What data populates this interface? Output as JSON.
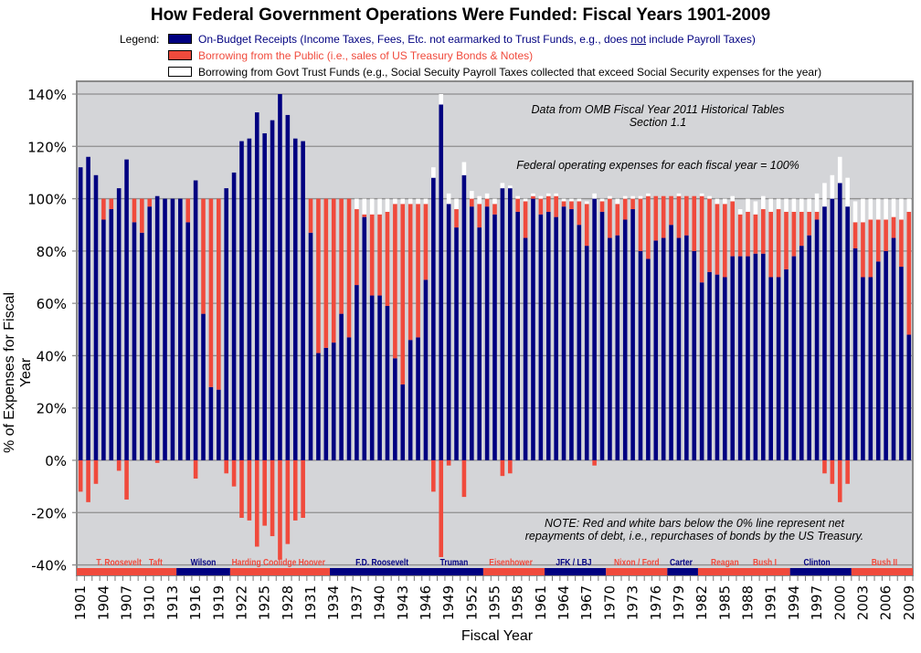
{
  "chart_data": {
    "type": "bar",
    "stacked": true,
    "title": "How Federal Government Operations Were Funded: Fiscal Years 1901-2009",
    "xlabel": "Fiscal Year",
    "ylabel": "% of Expenses for Fiscal Year",
    "ylim": [
      -40,
      140
    ],
    "yticks": [
      "140%",
      "120%",
      "100%",
      "80%",
      "60%",
      "40%",
      "20%",
      "0%",
      "-20%",
      "-40%"
    ],
    "ytick_values": [
      140,
      120,
      100,
      80,
      60,
      40,
      20,
      0,
      -20,
      -40
    ],
    "xtick_labels": [
      "1901",
      "1904",
      "1907",
      "1910",
      "1913",
      "1916",
      "1919",
      "1922",
      "1925",
      "1928",
      "1931",
      "1934",
      "1937",
      "1940",
      "1943",
      "1946",
      "1949",
      "1952",
      "1955",
      "1958",
      "1961",
      "1964",
      "1967",
      "1970",
      "1973",
      "1976",
      "1979",
      "1982",
      "1985",
      "1988",
      "1991",
      "1994",
      "1997",
      "2000",
      "2003",
      "2006",
      "2009"
    ],
    "grid": true,
    "legend": {
      "label": "Legend:",
      "placement": "top",
      "entries": [
        {
          "name": "On-Budget Receipts",
          "text_before": "On-Budget Receipts (Income Taxes, Fees, Etc. not earmarked to Trust Funds, e.g., does ",
          "underlined": "not",
          "text_after": " include Payroll Taxes)",
          "color": "#000080"
        },
        {
          "name": "Borrowing from the Public",
          "text": "Borrowing from the Public (i.e., sales of US Treasury Bonds & Notes)",
          "color": "#F04A3C"
        },
        {
          "name": "Borrowing from Govt Trust Funds",
          "text": "Borrowing from Govt Trust Funds (e.g., Social Secuity Payroll Taxes collected that exceed Social Security expenses for the year)",
          "color": "#FFFFFF"
        }
      ]
    },
    "annotations": {
      "source_line1": "Data from OMB Fiscal Year 2011 Historical Tables",
      "source_line2": "Section 1.1",
      "basis": "Federal operating expenses for each fiscal year = 100%",
      "note_line1": "NOTE: Red and white bars below the 0% line represent net",
      "note_line2": "repayments of debt, i.e., repurchases of bonds by the US Treasury."
    },
    "presidents": [
      {
        "name": "T. Roosevelt",
        "start": 1901,
        "end": 1913,
        "party_color": "#F04A3C"
      },
      {
        "name": "Taft",
        "start": 1901,
        "end": 1913,
        "party_color": "#F04A3C"
      },
      {
        "name": "Wilson",
        "start": 1914,
        "end": 1920,
        "party_color": "#000080"
      },
      {
        "name": "Harding Coolidge Hoover",
        "start": 1921,
        "end": 1933,
        "party_color": "#F04A3C"
      },
      {
        "name": "F.D. Roosevelt",
        "start": 1934,
        "end": 1953,
        "party_color": "#000080"
      },
      {
        "name": "Truman",
        "start": 1934,
        "end": 1953,
        "party_color": "#000080"
      },
      {
        "name": "Eisenhower",
        "start": 1954,
        "end": 1961,
        "party_color": "#F04A3C"
      },
      {
        "name": "JFK / LBJ",
        "start": 1962,
        "end": 1969,
        "party_color": "#000080"
      },
      {
        "name": "Nixon / Ford",
        "start": 1970,
        "end": 1977,
        "party_color": "#F04A3C"
      },
      {
        "name": "Carter",
        "start": 1978,
        "end": 1981,
        "party_color": "#000080"
      },
      {
        "name": "Reagan",
        "start": 1982,
        "end": 1993,
        "party_color": "#F04A3C"
      },
      {
        "name": "Bush I",
        "start": 1982,
        "end": 1993,
        "party_color": "#F04A3C"
      },
      {
        "name": "Clinton",
        "start": 1994,
        "end": 2001,
        "party_color": "#000080"
      },
      {
        "name": "Bush II",
        "start": 2002,
        "end": 2009,
        "party_color": "#F04A3C"
      }
    ],
    "x": [
      1901,
      1902,
      1903,
      1904,
      1905,
      1906,
      1907,
      1908,
      1909,
      1910,
      1911,
      1912,
      1913,
      1914,
      1915,
      1916,
      1917,
      1918,
      1919,
      1920,
      1921,
      1922,
      1923,
      1924,
      1925,
      1926,
      1927,
      1928,
      1929,
      1930,
      1931,
      1932,
      1933,
      1934,
      1935,
      1936,
      1937,
      1938,
      1939,
      1940,
      1941,
      1942,
      1943,
      1944,
      1945,
      1946,
      1947,
      1948,
      1949,
      1950,
      1951,
      1952,
      1953,
      1954,
      1955,
      1956,
      1957,
      1958,
      1959,
      1960,
      1961,
      1962,
      1963,
      1964,
      1965,
      1966,
      1967,
      1968,
      1969,
      1970,
      1971,
      1972,
      1973,
      1974,
      1975,
      1976,
      1977,
      1978,
      1979,
      1980,
      1981,
      1982,
      1983,
      1984,
      1985,
      1986,
      1987,
      1988,
      1989,
      1990,
      1991,
      1992,
      1993,
      1994,
      1995,
      1996,
      1997,
      1998,
      1999,
      2000,
      2001,
      2002,
      2003,
      2004,
      2005,
      2006,
      2007,
      2008,
      2009
    ],
    "series": [
      {
        "name": "On-Budget Receipts",
        "color": "#000080",
        "values": [
          112,
          116,
          109,
          92,
          96,
          104,
          115,
          91,
          87,
          97,
          101,
          100,
          100,
          100,
          91,
          107,
          56,
          28,
          27,
          104,
          110,
          122,
          123,
          133,
          125,
          130,
          140,
          132,
          123,
          122,
          87,
          41,
          43,
          45,
          56,
          47,
          67,
          93,
          63,
          63,
          59,
          39,
          29,
          46,
          47,
          69,
          108,
          136,
          98,
          89,
          109,
          97,
          89,
          97,
          94,
          104,
          104,
          95,
          85,
          100,
          94,
          95,
          93,
          97,
          96,
          90,
          82,
          100,
          95,
          85,
          86,
          92,
          96,
          80,
          77,
          84,
          85,
          90,
          85,
          86,
          80,
          68,
          72,
          71,
          70,
          78,
          78,
          78,
          79,
          79,
          70,
          70,
          73,
          78,
          82,
          86,
          92,
          97,
          100,
          106,
          97,
          81,
          70,
          70,
          76,
          80,
          85,
          74,
          48
        ]
      },
      {
        "name": "Borrowing from the Public",
        "color": "#F04A3C",
        "values": [
          -12,
          -16,
          -9,
          8,
          4,
          -4,
          -15,
          9,
          13,
          3,
          -1,
          0,
          0,
          0,
          9,
          -7,
          44,
          72,
          73,
          -5,
          -10,
          -22,
          -23,
          -33,
          -25,
          -29,
          -38,
          -32,
          -23,
          -22,
          13,
          59,
          57,
          55,
          44,
          53,
          29,
          1,
          31,
          31,
          36,
          59,
          69,
          52,
          51,
          29,
          -12,
          -37,
          -2,
          7,
          -14,
          3,
          9,
          3,
          4,
          -6,
          -5,
          5,
          14,
          1,
          6,
          6,
          8,
          2,
          3,
          9,
          16,
          -2,
          4,
          15,
          12,
          8,
          4,
          20,
          24,
          17,
          16,
          11,
          16,
          15,
          21,
          33,
          28,
          27,
          28,
          21,
          16,
          17,
          15,
          17,
          25,
          26,
          22,
          17,
          13,
          9,
          3,
          -5,
          -9,
          -16,
          -9,
          10,
          21,
          22,
          16,
          12,
          8,
          18,
          47
        ]
      },
      {
        "name": "Borrowing from Govt Trust Funds",
        "color": "#FFFFFF",
        "values": [
          0,
          0,
          0,
          0,
          0,
          0,
          0,
          0,
          0,
          0,
          0,
          0,
          0,
          0,
          0,
          0,
          0,
          0,
          0,
          0,
          0,
          0,
          0,
          0,
          0,
          0,
          0,
          0,
          0,
          0,
          0,
          0,
          0,
          0,
          0,
          0,
          4,
          6,
          6,
          6,
          5,
          2,
          2,
          2,
          2,
          2,
          4,
          4,
          4,
          4,
          5,
          3,
          3,
          2,
          2,
          2,
          1,
          1,
          1,
          1,
          1,
          1,
          1,
          1,
          1,
          1,
          1,
          2,
          1,
          1,
          2,
          1,
          1,
          1,
          1,
          0,
          0,
          0,
          1,
          0,
          0,
          1,
          1,
          2,
          2,
          2,
          2,
          5,
          5,
          5,
          5,
          4,
          5,
          5,
          5,
          5,
          7,
          9,
          9,
          10,
          11,
          8,
          9,
          8,
          8,
          8,
          7,
          8,
          5
        ]
      }
    ]
  }
}
